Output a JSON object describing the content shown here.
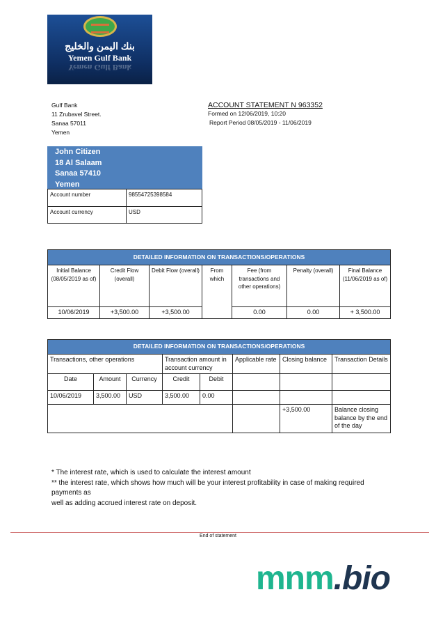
{
  "logo": {
    "arabic": "بنك اليمن والخليج",
    "english": "Yemen Gulf Bank"
  },
  "bank": {
    "name": "Gulf  Bank",
    "street": "11 Zrubavel Street.",
    "city": "Sanaa  57011",
    "country": "Yemen"
  },
  "statement": {
    "title": "ACCOUNT STATEMENT N  963352",
    "formed": "Formed on 12/06/2019, 10:20",
    "period": "Report Period 08/05/2019 - 11/06/2019"
  },
  "customer": {
    "name": "John Citizen",
    "street": "18 Al Salaam",
    "city": "Sanaa 57410",
    "country": "Yemen",
    "account_number_label": "Account number",
    "account_number": "98554725398584",
    "currency_label": "Account currency",
    "currency": "USD"
  },
  "summary": {
    "title": "DETAILED INFORMATION ON TRANSACTIONS/OPERATIONS",
    "headers": [
      "Initial Balance (08/05/2019 as of)",
      "Credit Flow (overall)",
      "Debit Flow (overall)",
      "From which",
      "Fee (from transactions and other operations)",
      "Penalty (overall)",
      "Final Balance (11/06/2019 as of)"
    ],
    "values": [
      "10/06/2019",
      "+3,500.00",
      "+3,500.00",
      "0.00",
      "0.00",
      "+ 3,500.00"
    ]
  },
  "details": {
    "title": "DETAILED INFORMATION ON TRANSACTIONS/OPERATIONS",
    "group_headers": [
      "Transactions, other operations",
      "Transaction amount in account currency",
      "Applicable rate",
      "Closing balance",
      "Transaction Details"
    ],
    "sub_headers": [
      "Date",
      "Amount",
      "Currency",
      "Credit",
      "Debit"
    ],
    "row": [
      "10/06/2019",
      "3,500.00",
      "USD",
      "3,500.00",
      "0.00"
    ],
    "closing_balance": "+3,500.00",
    "closing_details": "Balance closing balance by the end of the day"
  },
  "notes": [
    "* The interest rate, which is used to calculate the interest amount",
    "** the interest rate, which shows how much will be your interest profitability in case of making required payments as",
    "well as adding  accrued interest rate on deposit."
  ],
  "footer": {
    "end": "End of statement"
  },
  "watermark": {
    "part1": "mnm",
    "part2": ".bio",
    "color1": "#1fb58f",
    "color2": "#1f3550"
  }
}
